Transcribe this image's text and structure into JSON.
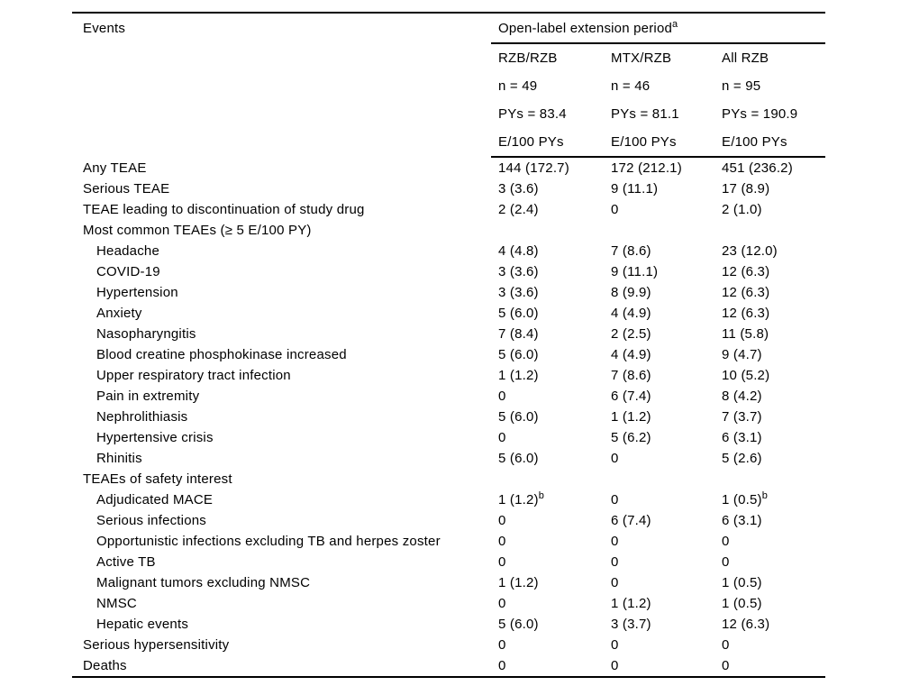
{
  "table": {
    "col1_header": "Events",
    "span_header": {
      "label": "Open-label extension period",
      "sup": "a"
    },
    "columns": [
      {
        "name": "RZB/RZB",
        "n": "n = 49",
        "pys": "PYs = 83.4",
        "unit": "E/100 PYs"
      },
      {
        "name": "MTX/RZB",
        "n": "n = 46",
        "pys": "PYs = 81.1",
        "unit": "E/100 PYs"
      },
      {
        "name": "All RZB",
        "n": "n = 95",
        "pys": "PYs = 190.9",
        "unit": "E/100 PYs"
      }
    ],
    "rows": [
      {
        "label": "Any TEAE",
        "indent": 0,
        "values": [
          "144 (172.7)",
          "172 (212.1)",
          "451 (236.2)"
        ],
        "sups": [
          "",
          "",
          ""
        ]
      },
      {
        "label": "Serious TEAE",
        "indent": 0,
        "values": [
          "3 (3.6)",
          "9 (11.1)",
          "17 (8.9)"
        ],
        "sups": [
          "",
          "",
          ""
        ]
      },
      {
        "label": "TEAE leading to discontinuation of study drug",
        "indent": 0,
        "values": [
          "2 (2.4)",
          "0",
          "2 (1.0)"
        ],
        "sups": [
          "",
          "",
          ""
        ]
      },
      {
        "label": "Most common TEAEs (≥ 5 E/100 PY)",
        "indent": 0,
        "values": [
          "",
          "",
          ""
        ],
        "sups": [
          "",
          "",
          ""
        ]
      },
      {
        "label": "Headache",
        "indent": 1,
        "values": [
          "4 (4.8)",
          "7 (8.6)",
          "23 (12.0)"
        ],
        "sups": [
          "",
          "",
          ""
        ]
      },
      {
        "label": "COVID-19",
        "indent": 1,
        "values": [
          "3 (3.6)",
          "9 (11.1)",
          "12 (6.3)"
        ],
        "sups": [
          "",
          "",
          ""
        ]
      },
      {
        "label": "Hypertension",
        "indent": 1,
        "values": [
          "3 (3.6)",
          "8 (9.9)",
          "12 (6.3)"
        ],
        "sups": [
          "",
          "",
          ""
        ]
      },
      {
        "label": "Anxiety",
        "indent": 1,
        "values": [
          "5 (6.0)",
          "4 (4.9)",
          "12 (6.3)"
        ],
        "sups": [
          "",
          "",
          ""
        ]
      },
      {
        "label": "Nasopharyngitis",
        "indent": 1,
        "values": [
          "7 (8.4)",
          "2 (2.5)",
          "11 (5.8)"
        ],
        "sups": [
          "",
          "",
          ""
        ]
      },
      {
        "label": "Blood creatine phosphokinase increased",
        "indent": 1,
        "values": [
          "5 (6.0)",
          "4 (4.9)",
          "9 (4.7)"
        ],
        "sups": [
          "",
          "",
          ""
        ]
      },
      {
        "label": "Upper respiratory tract infection",
        "indent": 1,
        "values": [
          "1 (1.2)",
          "7 (8.6)",
          "10 (5.2)"
        ],
        "sups": [
          "",
          "",
          ""
        ]
      },
      {
        "label": "Pain in extremity",
        "indent": 1,
        "values": [
          "0",
          "6 (7.4)",
          "8 (4.2)"
        ],
        "sups": [
          "",
          "",
          ""
        ]
      },
      {
        "label": "Nephrolithiasis",
        "indent": 1,
        "values": [
          "5 (6.0)",
          "1 (1.2)",
          "7 (3.7)"
        ],
        "sups": [
          "",
          "",
          ""
        ]
      },
      {
        "label": "Hypertensive crisis",
        "indent": 1,
        "values": [
          "0",
          "5 (6.2)",
          "6 (3.1)"
        ],
        "sups": [
          "",
          "",
          ""
        ]
      },
      {
        "label": "Rhinitis",
        "indent": 1,
        "values": [
          "5 (6.0)",
          "0",
          "5 (2.6)"
        ],
        "sups": [
          "",
          "",
          ""
        ]
      },
      {
        "label": "TEAEs of safety interest",
        "indent": 0,
        "values": [
          "",
          "",
          ""
        ],
        "sups": [
          "",
          "",
          ""
        ]
      },
      {
        "label": "Adjudicated MACE",
        "indent": 1,
        "values": [
          "1 (1.2)",
          "0",
          "1 (0.5)"
        ],
        "sups": [
          "b",
          "",
          "b"
        ]
      },
      {
        "label": "Serious infections",
        "indent": 1,
        "values": [
          "0",
          "6 (7.4)",
          "6 (3.1)"
        ],
        "sups": [
          "",
          "",
          ""
        ]
      },
      {
        "label": "Opportunistic infections excluding TB and herpes zoster",
        "indent": 1,
        "values": [
          "0",
          "0",
          "0"
        ],
        "sups": [
          "",
          "",
          ""
        ]
      },
      {
        "label": "Active TB",
        "indent": 1,
        "values": [
          "0",
          "0",
          "0"
        ],
        "sups": [
          "",
          "",
          ""
        ]
      },
      {
        "label": "Malignant tumors excluding NMSC",
        "indent": 1,
        "values": [
          "1 (1.2)",
          "0",
          "1 (0.5)"
        ],
        "sups": [
          "",
          "",
          ""
        ]
      },
      {
        "label": "NMSC",
        "indent": 1,
        "values": [
          "0",
          "1 (1.2)",
          "1 (0.5)"
        ],
        "sups": [
          "",
          "",
          ""
        ]
      },
      {
        "label": "Hepatic events",
        "indent": 1,
        "values": [
          "5 (6.0)",
          "3 (3.7)",
          "12 (6.3)"
        ],
        "sups": [
          "",
          "",
          ""
        ]
      },
      {
        "label": "Serious hypersensitivity",
        "indent": 0,
        "values": [
          "0",
          "0",
          "0"
        ],
        "sups": [
          "",
          "",
          ""
        ]
      },
      {
        "label": "Deaths",
        "indent": 0,
        "values": [
          "0",
          "0",
          "0"
        ],
        "sups": [
          "",
          "",
          ""
        ]
      }
    ]
  }
}
